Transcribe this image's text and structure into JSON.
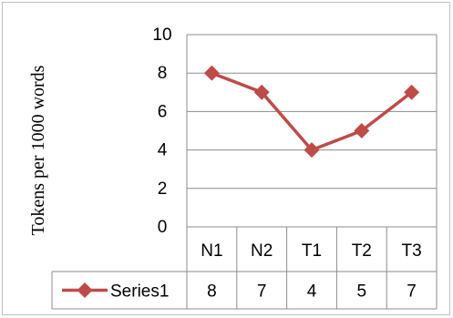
{
  "chart_data": {
    "type": "line",
    "ylabel": "Tokens per 1000 words",
    "categories": [
      "N1",
      "N2",
      "T1",
      "T2",
      "T3"
    ],
    "series": [
      {
        "name": "Series1",
        "values": [
          8,
          7,
          4,
          5,
          7
        ],
        "color": "#be4b48"
      }
    ],
    "ylim": [
      0,
      10
    ],
    "yticks": [
      "0",
      "2",
      "4",
      "6",
      "8",
      "10"
    ],
    "grid": true,
    "legend": "data-table",
    "data_table": true
  }
}
